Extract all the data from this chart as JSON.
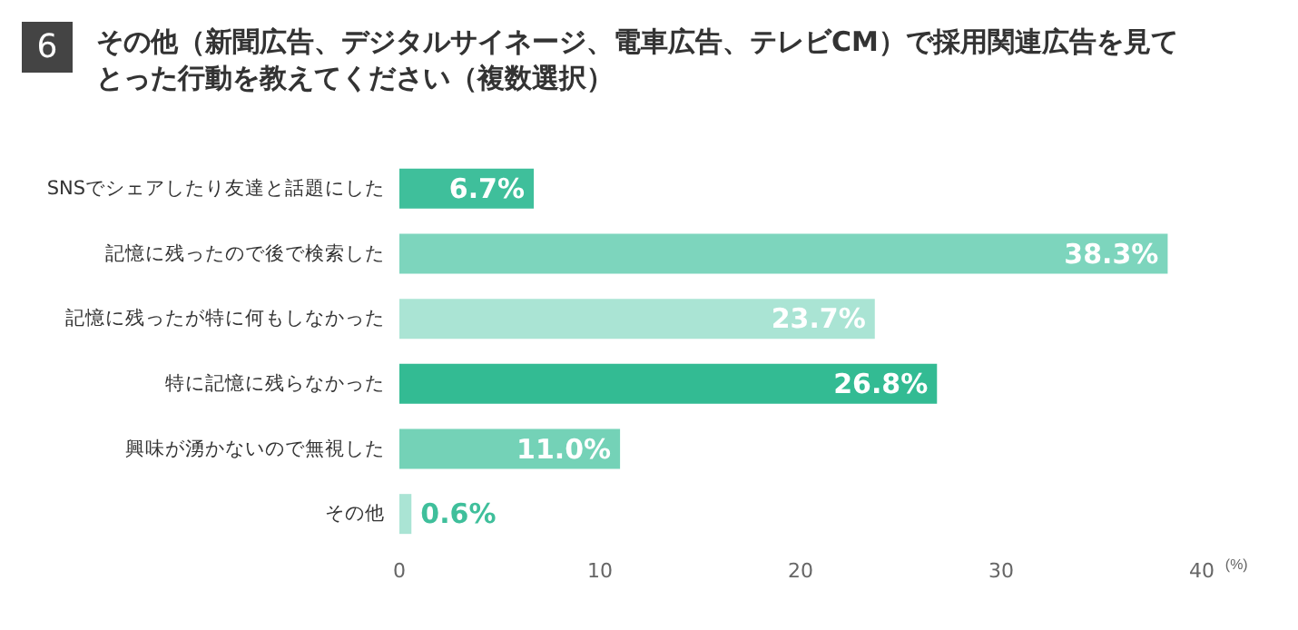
{
  "chart_data": {
    "type": "bar",
    "orientation": "horizontal",
    "title": "その他（新聞広告、デジタルサイネージ、電車広告、テレビCM）で採用関連広告を見てとった行動を教えてください（複数選択）",
    "annotations": [
      "6"
    ],
    "xlabel": "(%)",
    "categories": [
      "SNSでシェアしたり友達と話題にした",
      "記憶に残ったので後で検索した",
      "記憶に残ったが特に何もしなかった",
      "特に記憶に残らなかった",
      "興味が湧かないので無視した",
      "その他"
    ],
    "values": [
      6.7,
      38.3,
      23.7,
      26.8,
      11.0,
      0.6
    ],
    "value_labels": [
      "6.7%",
      "38.3%",
      "23.7%",
      "26.8%",
      "11.0%",
      "0.6%"
    ],
    "colors": [
      "#3fbf9b",
      "#7dd5bd",
      "#aae4d4",
      "#33bb93",
      "#74d2b7",
      "#aae4d4"
    ],
    "xlim": [
      0,
      40
    ],
    "xticks": [
      0,
      10,
      20,
      30,
      40
    ],
    "grid": false
  }
}
